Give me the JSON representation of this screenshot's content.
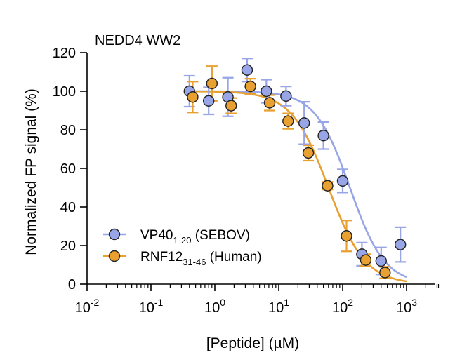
{
  "chart_data": {
    "type": "scatter",
    "title": "NEDD4 WW2",
    "xlabel": "[Peptide] (µM)",
    "ylabel": "Normalized FP signal (%)",
    "xscale": "log",
    "xlim_log10": [
      -2,
      3.5
    ],
    "ylim": [
      0,
      120
    ],
    "x_ticks": [
      {
        "value": 0.01,
        "base": "10",
        "exp": "-2"
      },
      {
        "value": 0.1,
        "base": "10",
        "exp": "-1"
      },
      {
        "value": 1,
        "base": "10",
        "exp": "0"
      },
      {
        "value": 10,
        "base": "10",
        "exp": "1"
      },
      {
        "value": 100,
        "base": "10",
        "exp": "2"
      },
      {
        "value": 1000,
        "base": "10",
        "exp": "3"
      }
    ],
    "y_ticks": [
      "0",
      "20",
      "40",
      "60",
      "80",
      "100",
      "120"
    ],
    "legend_position": "bottom-left",
    "series": [
      {
        "name": "VP40",
        "sub": "1-20",
        "suffix": " (SEBOV)",
        "color": "#98A5E6",
        "fit_ic50": 130,
        "fit_hill": 1.6,
        "fit_top": 100,
        "fit_bottom": 0,
        "points": [
          {
            "x": 0.4,
            "y": 100,
            "err": 8
          },
          {
            "x": 0.8,
            "y": 95,
            "err": 7
          },
          {
            "x": 1.6,
            "y": 97,
            "err": 10
          },
          {
            "x": 3.2,
            "y": 111,
            "err": 6
          },
          {
            "x": 6.4,
            "y": 100,
            "err": 6
          },
          {
            "x": 13,
            "y": 97.5,
            "err": 5
          },
          {
            "x": 25,
            "y": 83.5,
            "err": 11
          },
          {
            "x": 50,
            "y": 77,
            "err": 7
          },
          {
            "x": 100,
            "y": 53.5,
            "err": 6
          },
          {
            "x": 200,
            "y": 15.5,
            "err": 6
          },
          {
            "x": 400,
            "y": 12,
            "err": 7
          },
          {
            "x": 800,
            "y": 20.5,
            "err": 9
          }
        ]
      },
      {
        "name": "RNF12",
        "sub": "31-46",
        "suffix": " (Human)",
        "color": "#E8A030",
        "fit_ic50": 60,
        "fit_hill": 1.5,
        "fit_top": 100,
        "fit_bottom": 0,
        "points": [
          {
            "x": 0.45,
            "y": 97,
            "err": 8
          },
          {
            "x": 0.9,
            "y": 104,
            "err": 9
          },
          {
            "x": 1.8,
            "y": 92.5,
            "err": 4
          },
          {
            "x": 3.6,
            "y": 102.5,
            "err": 4
          },
          {
            "x": 7.2,
            "y": 94,
            "err": 4
          },
          {
            "x": 14,
            "y": 84.5,
            "err": 4
          },
          {
            "x": 29,
            "y": 68,
            "err": 4
          },
          {
            "x": 58,
            "y": 51,
            "err": 2
          },
          {
            "x": 115,
            "y": 25,
            "err": 8
          },
          {
            "x": 230,
            "y": 12.5,
            "err": 3
          },
          {
            "x": 460,
            "y": 6,
            "err": 3
          }
        ]
      }
    ]
  }
}
